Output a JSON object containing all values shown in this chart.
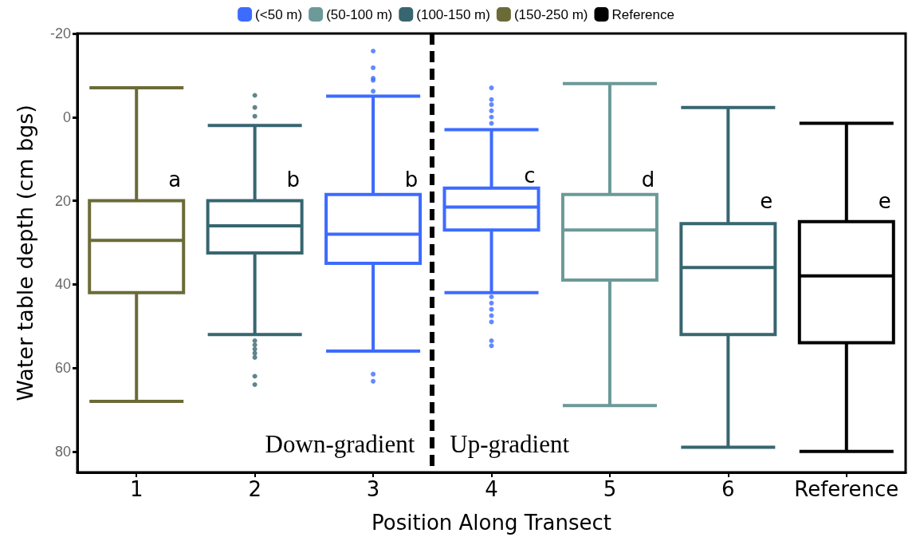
{
  "chart_data": {
    "type": "box",
    "xlabel": "Position Along Transect",
    "ylabel": "Water table depth (cm bgs)",
    "categories": [
      "1",
      "2",
      "3",
      "4",
      "5",
      "6",
      "Reference"
    ],
    "ylim": [
      85,
      -20
    ],
    "yticks": [
      -20,
      0,
      20,
      40,
      60,
      80
    ],
    "grid": false,
    "legend": "top",
    "series": [
      {
        "name": "(<50 m)",
        "color": "#3d6bff",
        "boxes": [
          null,
          null,
          {
            "low": -5,
            "q1": 18.5,
            "median": 28,
            "q3": 35,
            "high": 56,
            "outliers": [
              -15.8,
              -11.8,
              -9.3,
              -8.8,
              -6.2,
              61.5,
              63.2
            ]
          },
          {
            "low": 3,
            "q1": 17,
            "median": 21.5,
            "q3": 27,
            "high": 42,
            "outliers": [
              -7,
              -4.2,
              -3,
              -1.5,
              0,
              1.5,
              43,
              44.5,
              46,
              47.5,
              49,
              53.5,
              54.7
            ]
          },
          null,
          null,
          null
        ]
      },
      {
        "name": "(50-100 m)",
        "color": "#6b9a98",
        "boxes": [
          null,
          null,
          null,
          null,
          {
            "low": -8,
            "q1": 18.5,
            "median": 27,
            "q3": 39,
            "high": 69
          },
          null,
          null
        ]
      },
      {
        "name": "(100-150 m)",
        "color": "#376670",
        "boxes": [
          null,
          {
            "low": 2,
            "q1": 20,
            "median": 26,
            "q3": 32.5,
            "high": 52,
            "outliers": [
              -5.2,
              -2.3,
              -0.2,
              53.5,
              54.5,
              55.5,
              56.5,
              57.5,
              62,
              64
            ]
          },
          null,
          null,
          null,
          {
            "low": -2.3,
            "q1": 25.5,
            "median": 36,
            "q3": 52,
            "high": 79
          },
          null
        ]
      },
      {
        "name": "(150-250 m)",
        "color": "#6b6b38",
        "boxes": [
          {
            "low": -7,
            "q1": 20,
            "median": 29.5,
            "q3": 42,
            "high": 68
          },
          null,
          null,
          null,
          null,
          null,
          null
        ]
      },
      {
        "name": "Reference",
        "color": "#000000",
        "boxes": [
          null,
          null,
          null,
          null,
          null,
          null,
          {
            "low": 1.5,
            "q1": 25,
            "median": 38,
            "q3": 54,
            "high": 80
          }
        ]
      }
    ],
    "annotations": [
      {
        "text": "a",
        "x": "1",
        "y": 15
      },
      {
        "text": "b",
        "x": "2",
        "y": 15
      },
      {
        "text": "b",
        "x": "3",
        "y": 15
      },
      {
        "text": "c",
        "x": "4",
        "y": 14
      },
      {
        "text": "d",
        "x": "5",
        "y": 15
      },
      {
        "text": "e",
        "x": "6",
        "y": 20
      },
      {
        "text": "e",
        "x": "Reference",
        "y": 20
      },
      "Down-gradient",
      "Up-gradient"
    ]
  }
}
